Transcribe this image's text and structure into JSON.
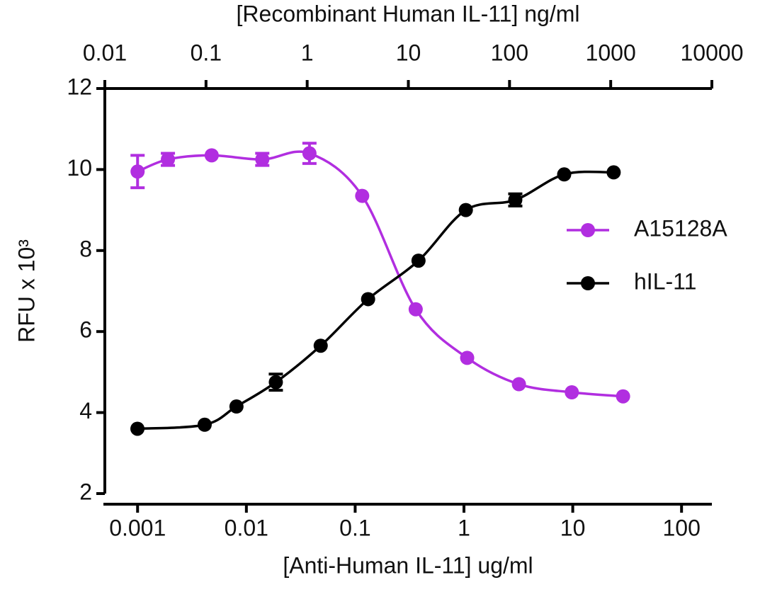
{
  "chart_data": {
    "type": "line",
    "xlabel": "[Anti-Human IL-11] ug/ml",
    "x2label": "[Recombinant Human IL-11] ng/ml",
    "ylabel": "RFU x 10³",
    "xscale": "log",
    "x2scale": "log",
    "xlim": [
      0.0005,
      190
    ],
    "xticks": [
      0.001,
      0.01,
      0.1,
      1,
      10,
      100
    ],
    "x2lim": [
      0.01,
      10000
    ],
    "x2ticks": [
      0.01,
      0.1,
      1,
      10,
      100,
      1000,
      10000
    ],
    "ylim": [
      2,
      12
    ],
    "yticks": [
      2,
      4,
      6,
      8,
      10,
      12
    ],
    "legend": "right",
    "series": [
      {
        "name": "A15128A",
        "color": "#b12ee0",
        "xaxis": "x",
        "x": [
          0.001,
          0.0019,
          0.0048,
          0.014,
          0.038,
          0.116,
          0.36,
          1.07,
          3.2,
          9.8,
          29
        ],
        "values": [
          9.95,
          10.25,
          10.35,
          10.25,
          10.4,
          9.35,
          6.55,
          5.35,
          4.7,
          4.5,
          4.4
        ],
        "errors": [
          0.4,
          0.15,
          null,
          0.15,
          0.25,
          null,
          null,
          null,
          null,
          null,
          null
        ]
      },
      {
        "name": "hIL-11",
        "color": "#000000",
        "xaxis": "x2",
        "x": [
          0.021,
          0.097,
          0.2,
          0.49,
          1.36,
          4.0,
          12.6,
          37,
          114,
          347,
          1070
        ],
        "values": [
          3.6,
          3.7,
          4.15,
          4.75,
          5.65,
          6.8,
          7.75,
          9.0,
          9.25,
          9.88,
          9.93
        ],
        "errors": [
          null,
          null,
          null,
          0.2,
          null,
          null,
          null,
          null,
          0.15,
          null,
          null
        ]
      }
    ]
  }
}
